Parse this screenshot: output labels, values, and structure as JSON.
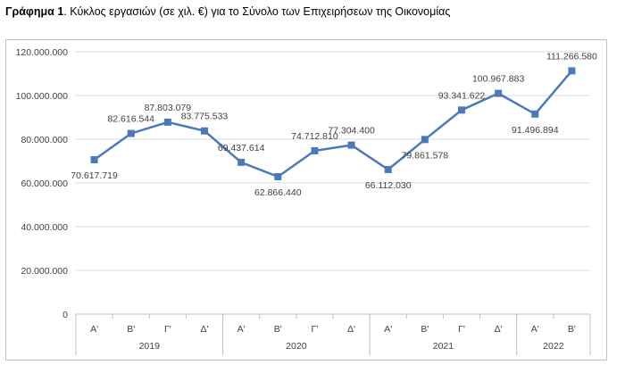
{
  "caption": {
    "bold": "Γράφημα 1",
    "rest": ". Κύκλος εργασιών (σε χιλ. €) για το Σύνολο των Επιχειρήσεων της Οικονομίας"
  },
  "colors": {
    "line": "#4a7ab8",
    "grid": "#d9d9d9",
    "axis": "#bfbfbf",
    "text": "#404040"
  },
  "chart_data": {
    "type": "line",
    "title": "",
    "xlabel": "",
    "ylabel": "",
    "ylim": [
      0,
      120000000
    ],
    "yticks": [
      0,
      20000000,
      40000000,
      60000000,
      80000000,
      100000000,
      120000000
    ],
    "ytick_labels": [
      "0",
      "20.000.000",
      "40.000.000",
      "60.000.000",
      "80.000.000",
      "100.000.000",
      "120.000.000"
    ],
    "grid": "horizontal",
    "legend": "none",
    "quarters": [
      "Α'",
      "Β'",
      "Γ'",
      "Δ'",
      "Α'",
      "Β'",
      "Γ'",
      "Δ'",
      "Α'",
      "Β'",
      "Γ'",
      "Δ'",
      "Α'",
      "Β'"
    ],
    "years": [
      {
        "label": "2019",
        "count": 4
      },
      {
        "label": "2020",
        "count": 4
      },
      {
        "label": "2021",
        "count": 4
      },
      {
        "label": "2022",
        "count": 2
      }
    ],
    "series": [
      {
        "values": [
          70617719,
          82616544,
          87803079,
          83775533,
          69437614,
          62866440,
          74712810,
          77304400,
          66112030,
          79861578,
          93341622,
          100967883,
          91496894,
          111266580
        ],
        "labels": [
          "70.617.719",
          "82.616.544",
          "87.803.079",
          "83.775.533",
          "69.437.614",
          "62.866.440",
          "74.712.810",
          "77.304.400",
          "66.112.030",
          "79.861.578",
          "93.341.622",
          "100.967.883",
          "91.496.894",
          "111.266.580"
        ],
        "label_positions": [
          "below",
          "above",
          "above",
          "above",
          "above",
          "below",
          "above",
          "above",
          "below",
          "below",
          "above",
          "above",
          "below",
          "above"
        ]
      }
    ]
  }
}
